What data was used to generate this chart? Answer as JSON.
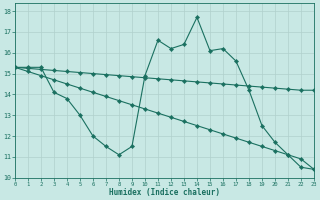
{
  "xlabel": "Humidex (Indice chaleur)",
  "bg_color": "#c8e8e4",
  "grid_color": "#b0d0cc",
  "line_color": "#1a7060",
  "xlim": [
    0,
    23
  ],
  "ylim": [
    10,
    18.4
  ],
  "xticks": [
    0,
    1,
    2,
    3,
    4,
    5,
    6,
    7,
    8,
    9,
    10,
    11,
    12,
    13,
    14,
    15,
    16,
    17,
    18,
    19,
    20,
    21,
    22,
    23
  ],
  "yticks": [
    10,
    11,
    12,
    13,
    14,
    15,
    16,
    17,
    18
  ],
  "series1_x": [
    0,
    1,
    2,
    3,
    4,
    5,
    6,
    7,
    8,
    9,
    10,
    11,
    12,
    13,
    14,
    15,
    16,
    17,
    18,
    19,
    20,
    21,
    22,
    23
  ],
  "series1_y": [
    15.3,
    15.3,
    15.3,
    14.1,
    13.8,
    13.0,
    12.0,
    11.5,
    11.1,
    11.5,
    14.9,
    16.6,
    16.2,
    16.4,
    17.7,
    16.1,
    16.2,
    15.6,
    14.2,
    12.5,
    11.7,
    11.1,
    10.5,
    10.4
  ],
  "series2_x": [
    0,
    1,
    2,
    3,
    4,
    5,
    6,
    7,
    8,
    9,
    10,
    11,
    12,
    13,
    14,
    15,
    16,
    17,
    18,
    19,
    20,
    21,
    22,
    23
  ],
  "series2_y": [
    15.3,
    15.25,
    15.2,
    15.15,
    15.1,
    15.05,
    15.0,
    14.95,
    14.9,
    14.85,
    14.8,
    14.75,
    14.7,
    14.65,
    14.6,
    14.55,
    14.5,
    14.45,
    14.4,
    14.35,
    14.3,
    14.25,
    14.2,
    14.2
  ],
  "series3_x": [
    0,
    1,
    2,
    3,
    4,
    5,
    6,
    7,
    8,
    9,
    10,
    11,
    12,
    13,
    14,
    15,
    16,
    17,
    18,
    19,
    20,
    21,
    22,
    23
  ],
  "series3_y": [
    15.3,
    15.1,
    14.9,
    14.7,
    14.5,
    14.3,
    14.1,
    13.9,
    13.7,
    13.5,
    13.3,
    13.1,
    12.9,
    12.7,
    12.5,
    12.3,
    12.1,
    11.9,
    11.7,
    11.5,
    11.3,
    11.1,
    10.9,
    10.4
  ]
}
